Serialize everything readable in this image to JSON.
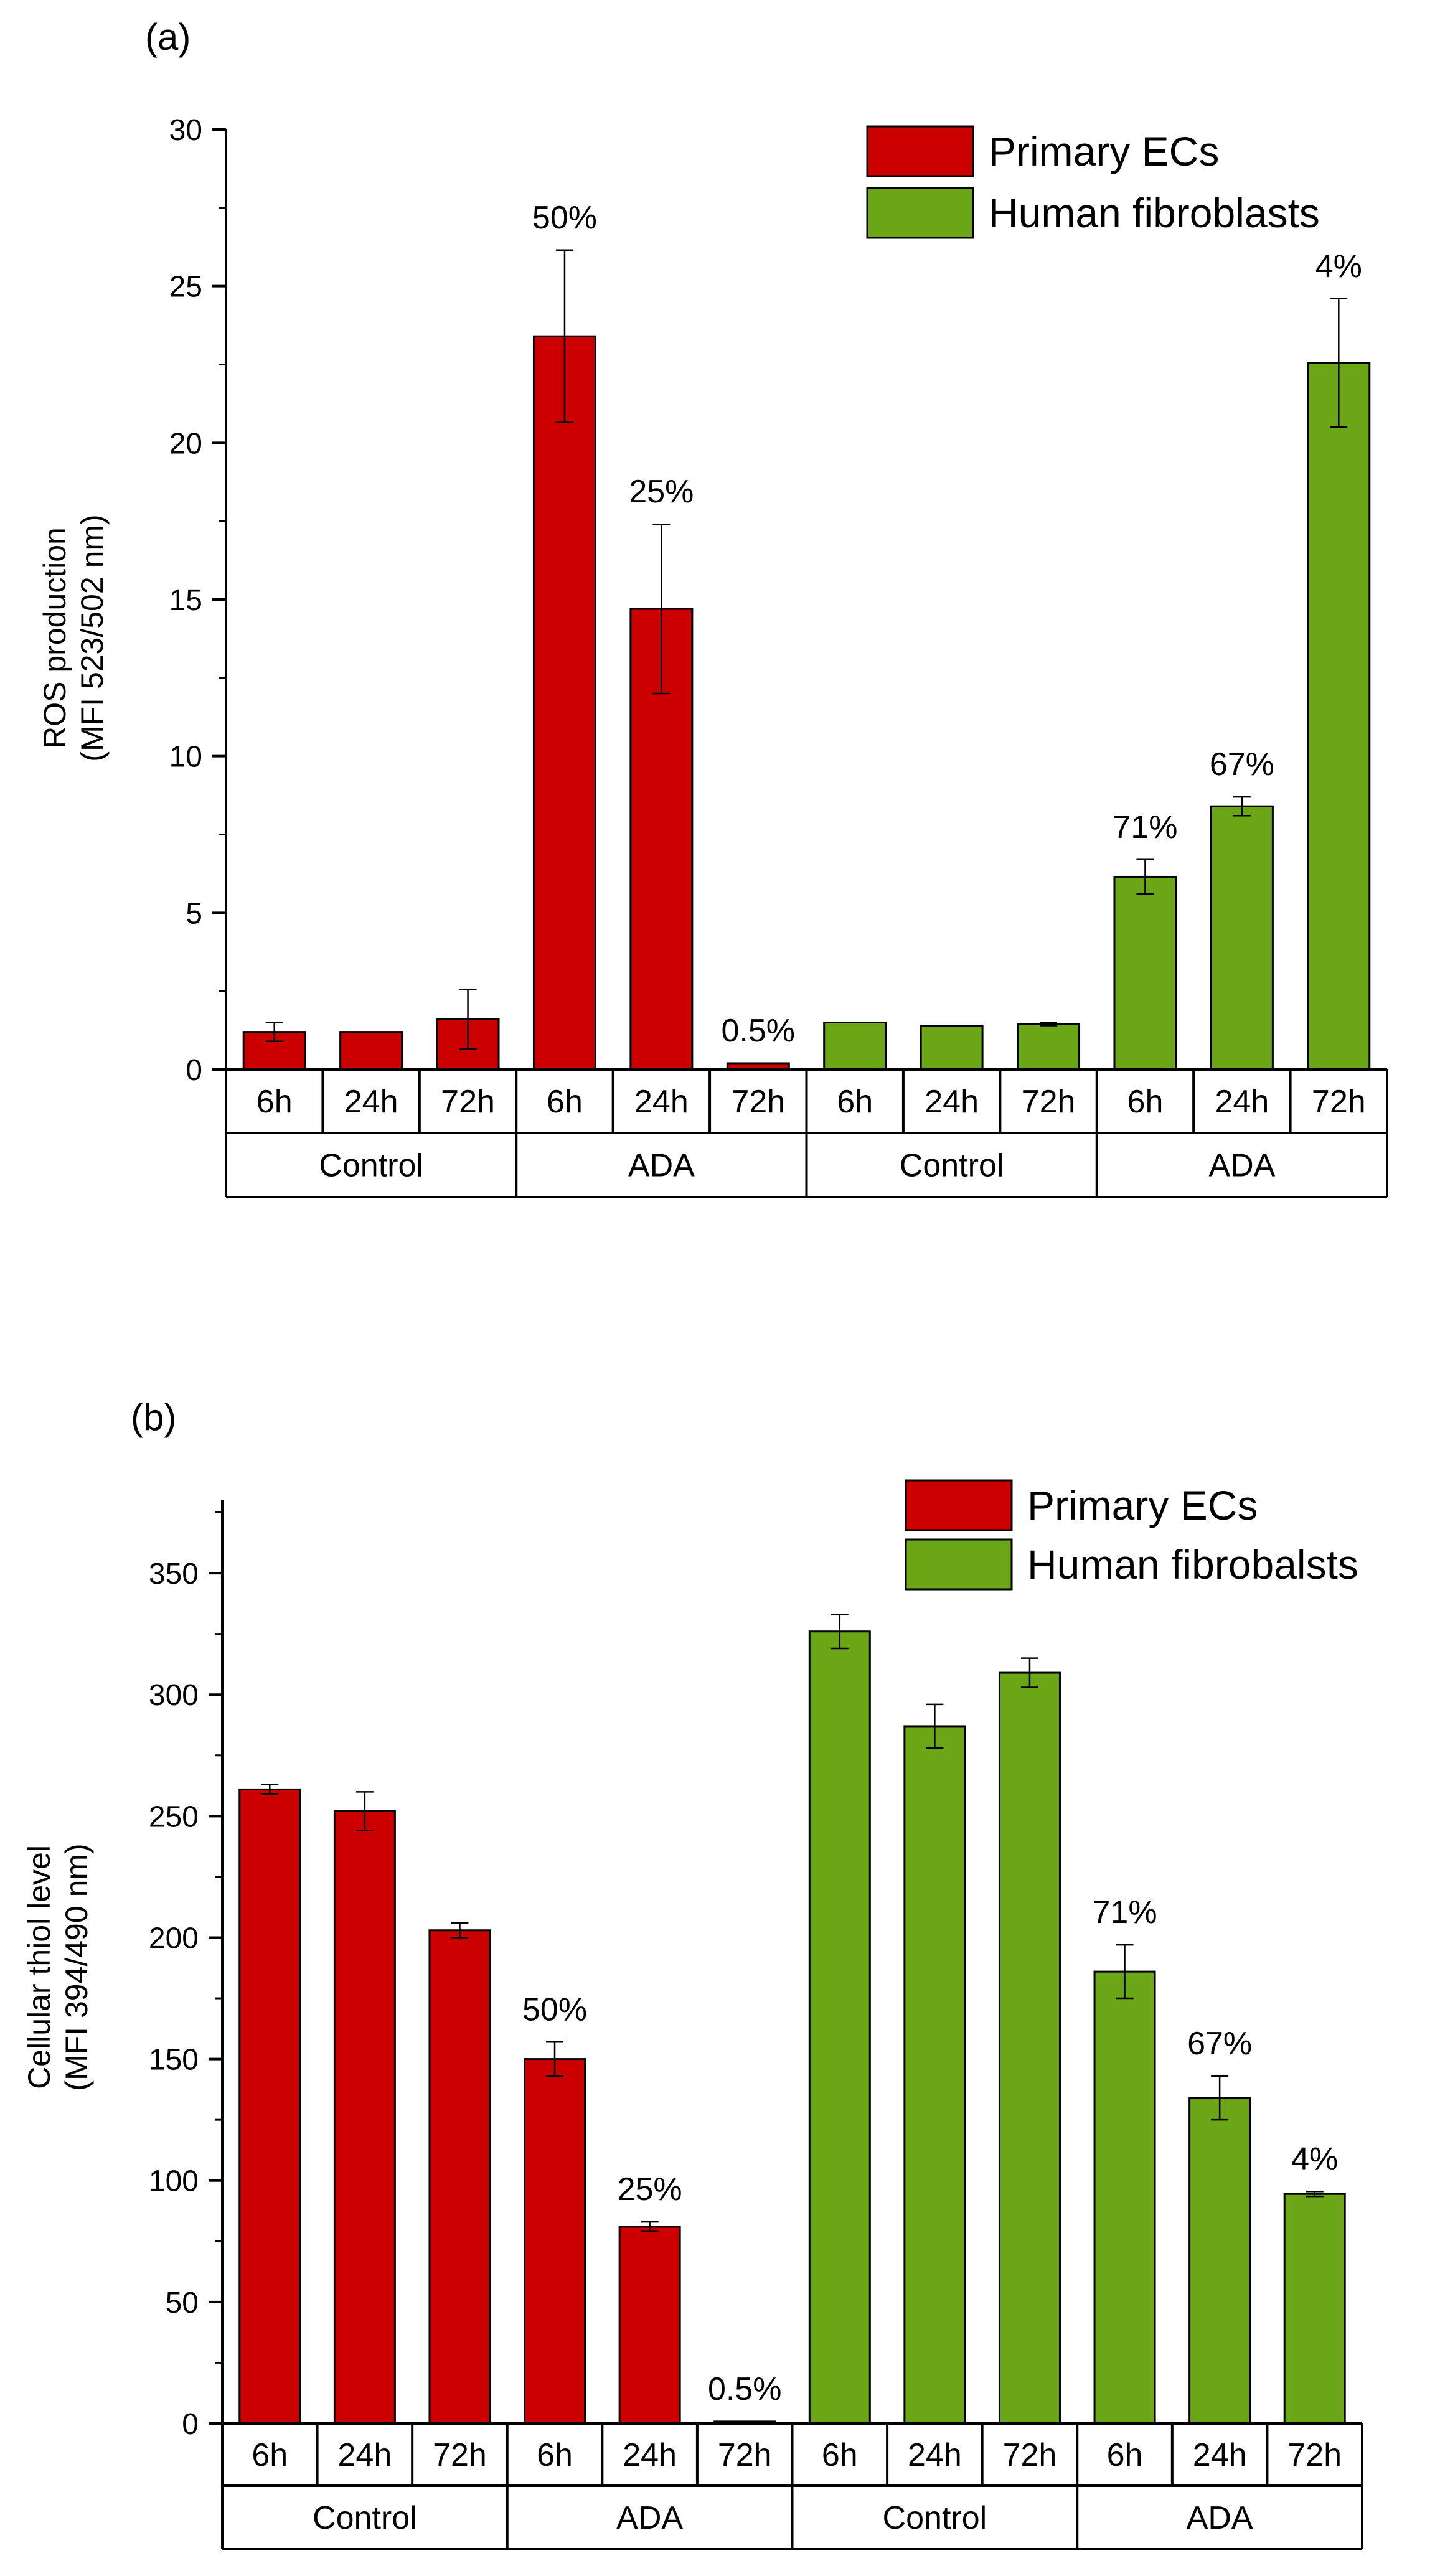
{
  "colors": {
    "primary_ecs": "#cc0000",
    "human_fibroblasts": "#6aa615",
    "axis": "#000000"
  },
  "chart_data": [
    {
      "type": "bar",
      "panel_label": "(a)",
      "ylabel": [
        "ROS production",
        "(MFI 523/502 nm)"
      ],
      "ylim": [
        0,
        30
      ],
      "yticks": [
        0,
        5,
        10,
        15,
        20,
        25,
        30
      ],
      "time_labels": [
        "6h",
        "24h",
        "72h",
        "6h",
        "24h",
        "72h",
        "6h",
        "24h",
        "72h",
        "6h",
        "24h",
        "72h"
      ],
      "group_labels": [
        "Control",
        "ADA",
        "Control",
        "ADA"
      ],
      "legend": [
        "Primary ECs",
        "Human fibroblasts"
      ],
      "series": [
        {
          "name": "Primary ECs",
          "values": [
            1.2,
            1.2,
            1.6,
            23.4,
            14.7,
            0.2
          ],
          "errors": [
            0.3,
            0.0,
            0.95,
            2.75,
            2.7,
            0.0
          ],
          "annotations": [
            "",
            "",
            "",
            "50%",
            "25%",
            "0.5%"
          ]
        },
        {
          "name": "Human fibroblasts",
          "values": [
            1.5,
            1.4,
            1.45,
            6.15,
            8.4,
            22.55
          ],
          "errors": [
            0.0,
            0.0,
            0.05,
            0.55,
            0.3,
            2.05
          ],
          "annotations": [
            "",
            "",
            "",
            "71%",
            "67%",
            "4%"
          ]
        }
      ]
    },
    {
      "type": "bar",
      "panel_label": "(b)",
      "ylabel": [
        "Cellular thiol level",
        "(MFI 394/490 nm)"
      ],
      "ylim": [
        0,
        380
      ],
      "yticks": [
        0,
        50,
        100,
        150,
        200,
        250,
        300,
        350
      ],
      "time_labels": [
        "6h",
        "24h",
        "72h",
        "6h",
        "24h",
        "72h",
        "6h",
        "24h",
        "72h",
        "6h",
        "24h",
        "72h"
      ],
      "group_labels": [
        "Control",
        "ADA",
        "Control",
        "ADA"
      ],
      "legend": [
        "Primary ECs",
        "Human fibrobalsts"
      ],
      "series": [
        {
          "name": "Primary ECs",
          "values": [
            261,
            252,
            203,
            150,
            81,
            0.8
          ],
          "errors": [
            2,
            8,
            3,
            7,
            2,
            0
          ],
          "annotations": [
            "",
            "",
            "",
            "50%",
            "25%",
            "0.5%"
          ]
        },
        {
          "name": "Human fibroblasts",
          "values": [
            326,
            287,
            309,
            186,
            134,
            94.5
          ],
          "errors": [
            7,
            9,
            6,
            11,
            9,
            1
          ],
          "annotations": [
            "",
            "",
            "",
            "71%",
            "67%",
            "4%"
          ]
        }
      ]
    }
  ]
}
